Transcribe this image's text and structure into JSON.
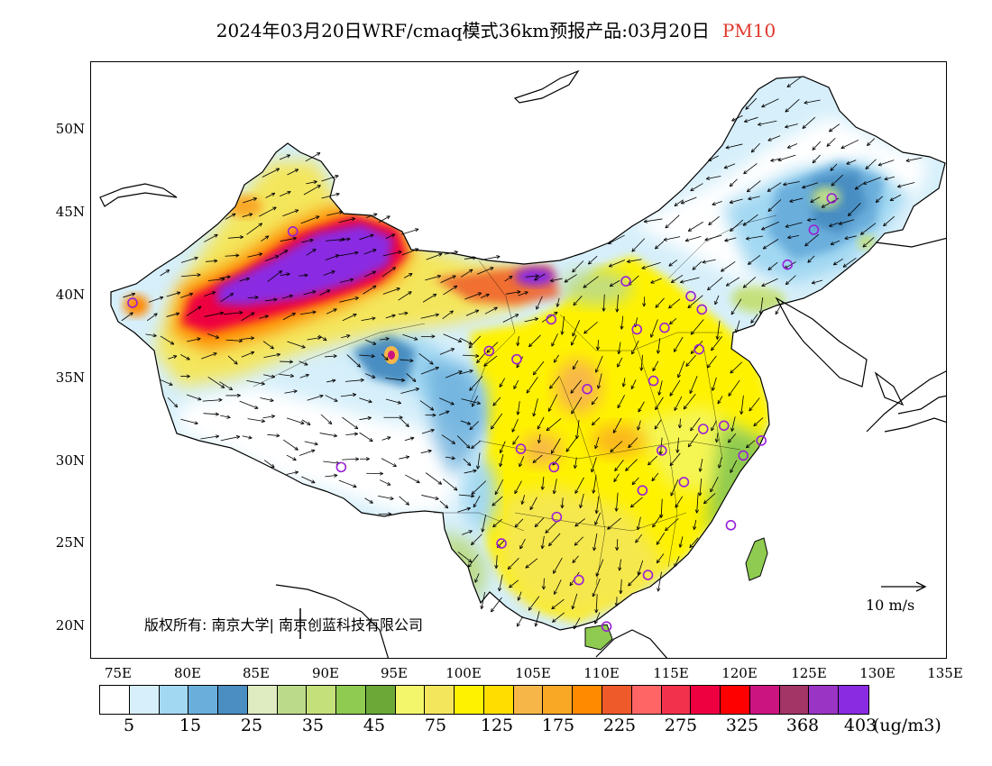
{
  "title": {
    "main": "2024年03月20日WRF/cmaq模式36km预报产品:03月20日",
    "variable": "PM10",
    "variable_color": "#e0382b"
  },
  "axes": {
    "lat_labels": [
      "50N",
      "45N",
      "40N",
      "35N",
      "30N",
      "25N",
      "20N"
    ],
    "lon_labels": [
      "75E",
      "80E",
      "85E",
      "90E",
      "95E",
      "100E",
      "105E",
      "110E",
      "115E",
      "120E",
      "125E",
      "130E",
      "135E"
    ],
    "lat_range": [
      18,
      54
    ],
    "lon_range": [
      73,
      135
    ]
  },
  "copyright": "版权所有: 南京大学| 南京创蓝科技有限公司",
  "wind_reference": "10 m/s",
  "colorbar": {
    "colors": [
      "#ffffff",
      "#d6effa",
      "#a2d8f2",
      "#6aaedc",
      "#4a8ec2",
      "#dfebc0",
      "#bcdb8a",
      "#c4e07a",
      "#8fcb50",
      "#6ba838",
      "#f3f66a",
      "#f4e65c",
      "#fff200",
      "#ffdd00",
      "#f7b748",
      "#f9a825",
      "#ff8a00",
      "#ef5a2b",
      "#ff6565",
      "#f2314c",
      "#ee0040",
      "#ff0000",
      "#cc1480",
      "#a33466",
      "#9a34c4",
      "#8a2be2"
    ],
    "tick_labels": [
      "5",
      "15",
      "25",
      "35",
      "45",
      "75",
      "125",
      "175",
      "225",
      "275",
      "325",
      "368",
      "403"
    ],
    "unit": "(ug/m3)"
  },
  "colors": {
    "frame": "#000000",
    "city_marker": "#9a1fd6",
    "wind_arrow": "#000000"
  },
  "map": {
    "cities": [
      {
        "lon": 76.0,
        "lat": 39.5
      },
      {
        "lon": 87.6,
        "lat": 43.8
      },
      {
        "lon": 91.1,
        "lat": 29.6
      },
      {
        "lon": 101.8,
        "lat": 36.6
      },
      {
        "lon": 103.8,
        "lat": 36.1
      },
      {
        "lon": 106.3,
        "lat": 38.5
      },
      {
        "lon": 104.1,
        "lat": 30.7
      },
      {
        "lon": 106.5,
        "lat": 29.6
      },
      {
        "lon": 106.7,
        "lat": 26.6
      },
      {
        "lon": 102.7,
        "lat": 25.0
      },
      {
        "lon": 108.3,
        "lat": 22.8
      },
      {
        "lon": 110.3,
        "lat": 20.0
      },
      {
        "lon": 108.9,
        "lat": 34.3
      },
      {
        "lon": 113.3,
        "lat": 23.1
      },
      {
        "lon": 112.9,
        "lat": 28.2
      },
      {
        "lon": 114.3,
        "lat": 30.6
      },
      {
        "lon": 115.9,
        "lat": 28.7
      },
      {
        "lon": 117.3,
        "lat": 31.9
      },
      {
        "lon": 119.3,
        "lat": 26.1
      },
      {
        "lon": 118.8,
        "lat": 32.1
      },
      {
        "lon": 120.2,
        "lat": 30.3
      },
      {
        "lon": 121.5,
        "lat": 31.2
      },
      {
        "lon": 113.7,
        "lat": 34.8
      },
      {
        "lon": 117.0,
        "lat": 36.7
      },
      {
        "lon": 112.5,
        "lat": 37.9
      },
      {
        "lon": 114.5,
        "lat": 38.0
      },
      {
        "lon": 116.4,
        "lat": 39.9
      },
      {
        "lon": 117.2,
        "lat": 39.1
      },
      {
        "lon": 111.7,
        "lat": 40.8
      },
      {
        "lon": 123.4,
        "lat": 41.8
      },
      {
        "lon": 125.3,
        "lat": 43.9
      },
      {
        "lon": 126.6,
        "lat": 45.8
      }
    ]
  }
}
